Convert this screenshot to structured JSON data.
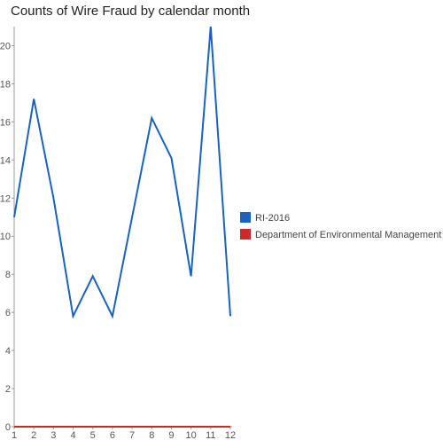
{
  "chart_data": {
    "type": "line",
    "title": "Counts of Wire Fraud by calendar month",
    "xlabel": "",
    "ylabel": "",
    "x": [
      1,
      2,
      3,
      4,
      5,
      6,
      7,
      8,
      9,
      10,
      11,
      12
    ],
    "x_tick_labels": [
      "1",
      "2",
      "3",
      "4",
      "5",
      "6",
      "7",
      "8",
      "9",
      "10",
      "11",
      "12"
    ],
    "y_ticks": [
      0,
      2,
      4,
      6,
      8,
      10,
      12,
      14,
      16,
      18,
      20
    ],
    "y_tick_labels": [
      "0",
      "2",
      "4",
      "6",
      "8",
      "10",
      "12",
      "14",
      "16",
      "18",
      "20"
    ],
    "xlim": [
      1,
      12
    ],
    "ylim": [
      0,
      21
    ],
    "grid": false,
    "legend_position": "right",
    "series": [
      {
        "name": "RI-2016",
        "color": "#1a62bb",
        "values": [
          11,
          17.2,
          12,
          5.8,
          7.9,
          5.8,
          11,
          16.2,
          14.1,
          7.9,
          21,
          5.8
        ]
      },
      {
        "name": "Department of Environmental Management",
        "color": "#cc2a2a",
        "values": [
          0,
          0,
          0,
          0,
          0,
          0,
          0,
          0,
          0,
          0,
          0,
          0
        ]
      }
    ]
  }
}
